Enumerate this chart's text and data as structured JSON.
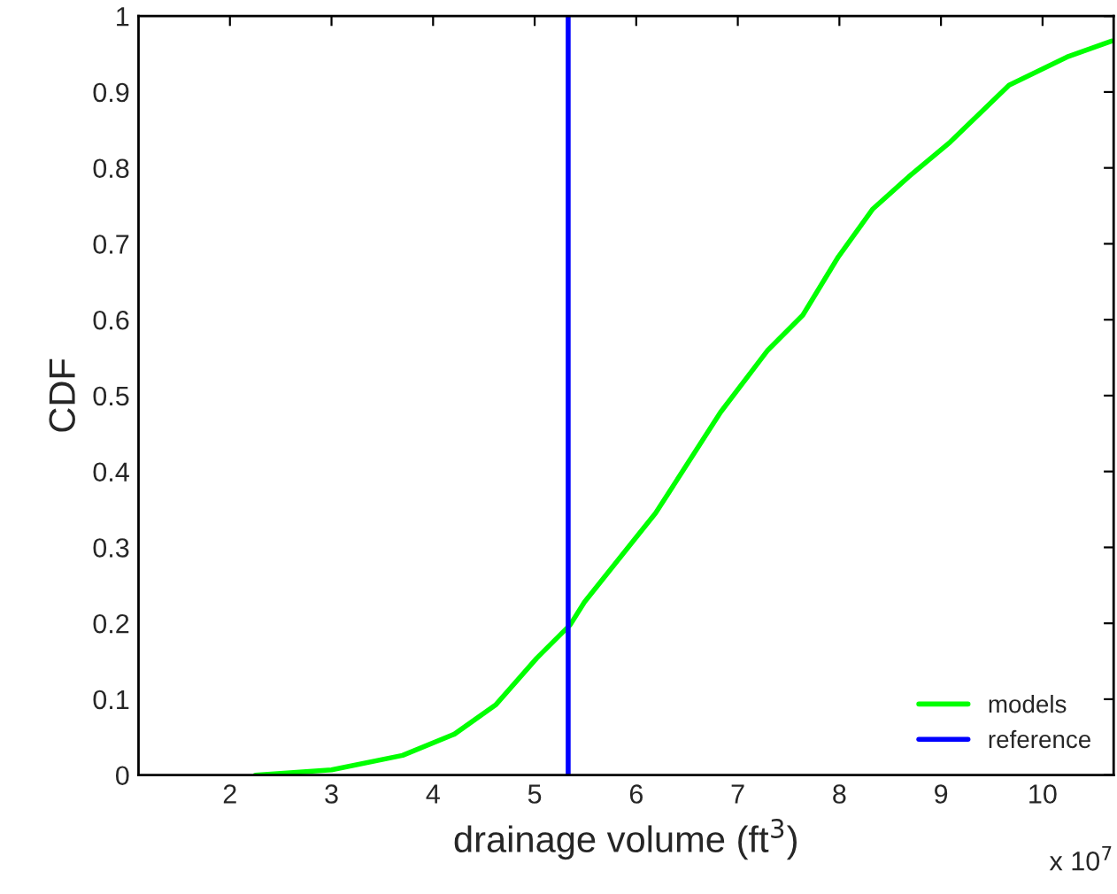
{
  "chart_data": {
    "type": "line",
    "xlabel": "drainage volume (ft$^{3}$)",
    "ylabel": "CDF",
    "x": [
      2.25,
      3.0,
      3.7,
      4.21,
      4.62,
      5.02,
      5.35,
      5.49,
      6.01,
      6.19,
      6.83,
      7.29,
      7.64,
      7.99,
      8.33,
      8.68,
      9.09,
      9.67,
      10.24,
      10.68
    ],
    "series": [
      {
        "name": "models",
        "color": "#00ff00",
        "values": [
          0,
          0.007,
          0.026,
          0.054,
          0.093,
          0.154,
          0.198,
          0.228,
          0.315,
          0.345,
          0.478,
          0.559,
          0.606,
          0.683,
          0.746,
          0.788,
          0.834,
          0.909,
          0.946,
          0.967
        ]
      },
      {
        "name": "reference",
        "color": "#0000ff",
        "x": [
          5.33,
          5.33
        ],
        "values": [
          0,
          1
        ]
      }
    ],
    "xlim": [
      1.1,
      10.7
    ],
    "xticks": [
      2,
      3,
      4,
      5,
      6,
      7,
      8,
      9,
      10
    ],
    "ylim": [
      0,
      1
    ],
    "yticks": [
      0,
      0.1,
      0.2,
      0.3,
      0.4,
      0.5,
      0.6,
      0.7,
      0.8,
      0.9,
      1
    ],
    "annotations": [
      "x 10$^{7}$"
    ],
    "grid": false,
    "legend": "bottom right"
  }
}
